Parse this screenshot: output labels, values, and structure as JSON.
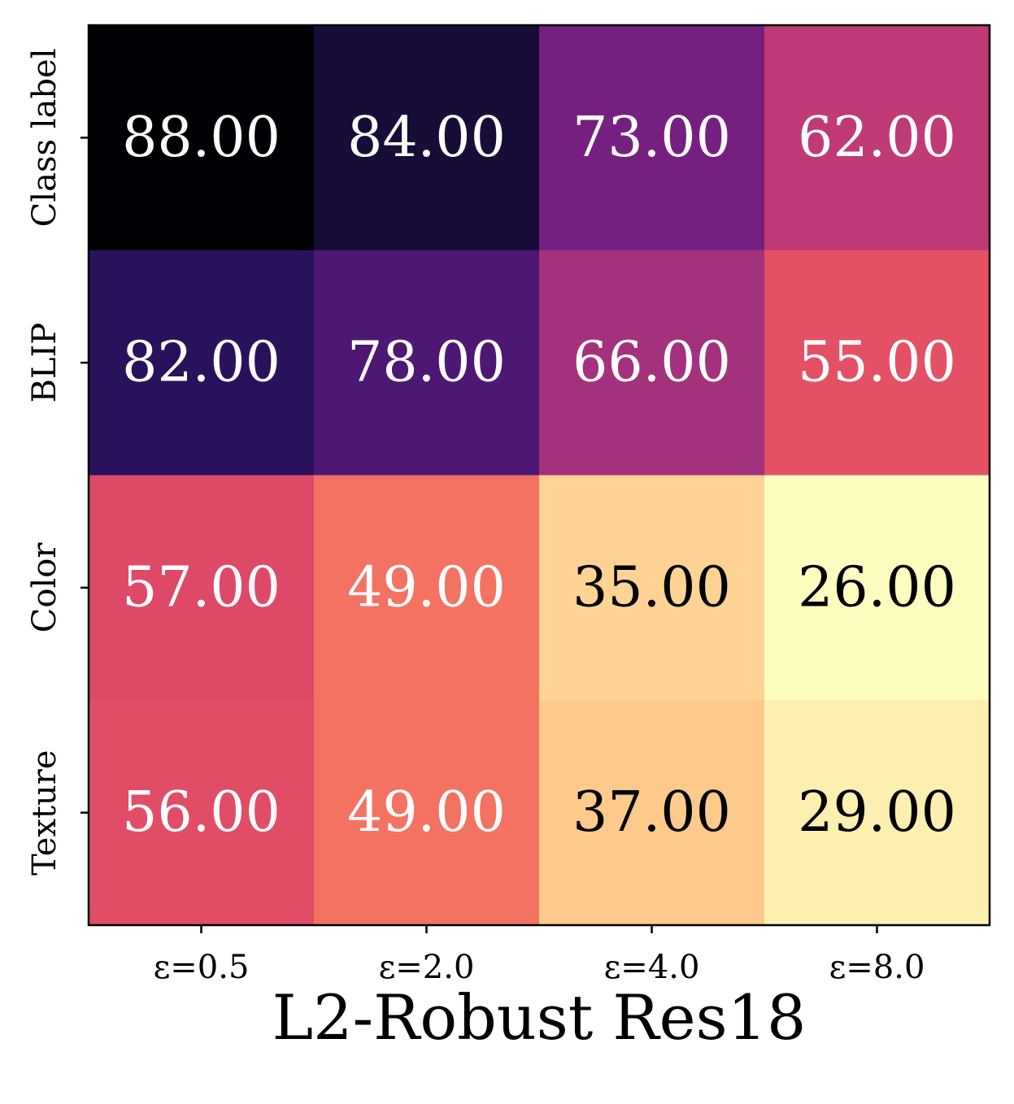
{
  "chart_data": {
    "type": "heatmap",
    "title": "",
    "xlabel": "L2-Robust Res18",
    "ylabel": "",
    "x_categories": [
      "ε=0.5",
      "ε=2.0",
      "ε=4.0",
      "ε=8.0"
    ],
    "y_categories": [
      "Class label",
      "BLIP",
      "Color",
      "Texture"
    ],
    "values": [
      [
        88.0,
        84.0,
        73.0,
        62.0
      ],
      [
        82.0,
        78.0,
        66.0,
        55.0
      ],
      [
        57.0,
        49.0,
        35.0,
        26.0
      ],
      [
        56.0,
        49.0,
        37.0,
        29.0
      ]
    ],
    "value_labels": [
      [
        "88.00",
        "84.00",
        "73.00",
        "62.00"
      ],
      [
        "82.00",
        "78.00",
        "66.00",
        "55.00"
      ],
      [
        "57.00",
        "49.00",
        "35.00",
        "26.00"
      ],
      [
        "56.00",
        "49.00",
        "37.00",
        "29.00"
      ]
    ],
    "colormap": "magma_r",
    "colorbar": false,
    "grid": false
  }
}
